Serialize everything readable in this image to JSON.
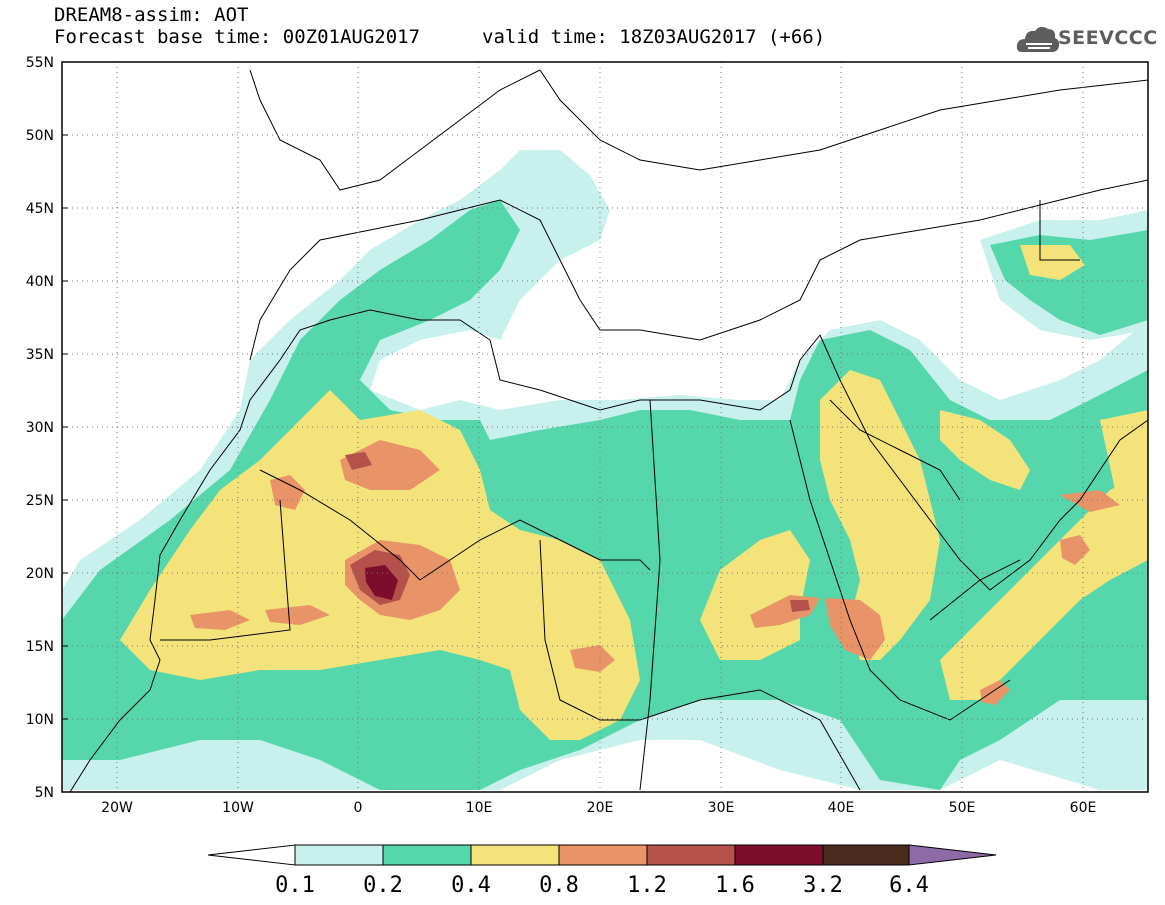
{
  "header": {
    "line1": "DREAM8-assim: AOT",
    "line2": "Forecast base time: 00Z01AUG2017",
    "valid": "valid time: 18Z03AUG2017 (+66)"
  },
  "logo": {
    "text": "SEEVCCC",
    "icon": "cloud-icon"
  },
  "map": {
    "lon_range": [
      -25,
      65
    ],
    "lat_range": [
      5,
      55
    ],
    "lat_labels": [
      "55N",
      "50N",
      "45N",
      "40N",
      "35N",
      "30N",
      "25N",
      "20N",
      "15N",
      "10N",
      "5N"
    ],
    "lon_labels": [
      "20W",
      "10W",
      "0",
      "10E",
      "20E",
      "30E",
      "40E",
      "50E",
      "60E"
    ],
    "grid": "dotted"
  },
  "colorbar": {
    "levels": [
      "0.1",
      "0.2",
      "0.4",
      "0.8",
      "1.2",
      "1.6",
      "3.2",
      "6.4"
    ],
    "colors": [
      "#c8f0ec",
      "#55d6ab",
      "#f3e37a",
      "#e89468",
      "#b3514a",
      "#7c0d2c",
      "#4a2c1e",
      "#8e6aa6"
    ],
    "under_color": "#ffffff"
  }
}
